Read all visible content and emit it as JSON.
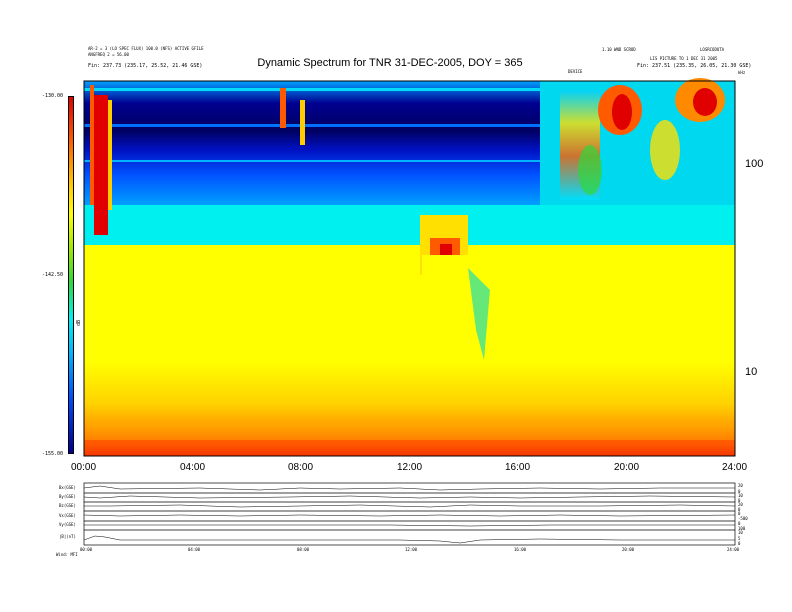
{
  "header": {
    "left_line1": "AR-2 = 3 (LO SPEC FLUX) 100.0 (NFS) ACTIVE GFILE",
    "left_line2": "ANGFREQ 2 = 56.00",
    "left_sub": "Fin: 237.73 (235.17, 25.52, 21.46 GSE)",
    "right_line1": "1.10 WND SCROD",
    "right_line2": "LIS PICTURE TO 1 DEC 31 2005",
    "right_line3": "LOSRCODUTA",
    "right_sub": "Fin: 237.51 (235.35, 26.05, 21.30 GSE)",
    "marker_label": "DEVICE"
  },
  "chart_data": {
    "type": "heatmap",
    "title": "Dynamic Spectrum for TNR 31-DEC-2005, DOY = 365",
    "colorbar": {
      "label": "dB",
      "ticks": [
        "-130.00",
        "-142.50",
        "-155.00"
      ],
      "range": [
        -155.0,
        -130.0
      ]
    },
    "x_axis": {
      "ticks": [
        "00:00",
        "04:00",
        "08:00",
        "12:00",
        "16:00",
        "20:00",
        "24:00"
      ],
      "range_hours": [
        0,
        24
      ]
    },
    "y_axis": {
      "scale": "log",
      "unit": "kHz",
      "ticks": [
        "100",
        "10"
      ]
    },
    "colors": {
      "dark": "#000090",
      "blue": "#0050ff",
      "cyan": "#00f0f0",
      "green": "#2dd83a",
      "yellow": "#ffff00",
      "orange": "#ff5a00",
      "red": "#e00000"
    },
    "panels": [
      {
        "label": "Bx(GSE)",
        "ticks": [
          "20",
          "0"
        ]
      },
      {
        "label": "By(GSE)",
        "ticks": [
          "10",
          "0"
        ]
      },
      {
        "label": "Bz(GSE)",
        "ticks": [
          "20",
          "0"
        ]
      },
      {
        "label": "Vx(GSE)",
        "ticks": [
          "0",
          "-500"
        ]
      },
      {
        "label": "Vy(GSE)",
        "ticks": [
          "0",
          "100"
        ]
      },
      {
        "label": "|B|(nT)",
        "ticks": [
          "10",
          "5",
          "0"
        ]
      }
    ],
    "panel_time_ticks": [
      "00:00",
      "04:00",
      "08:00",
      "12:00",
      "16:00",
      "20:00",
      "24:00"
    ],
    "bottom_label": "Wind: MFI"
  }
}
